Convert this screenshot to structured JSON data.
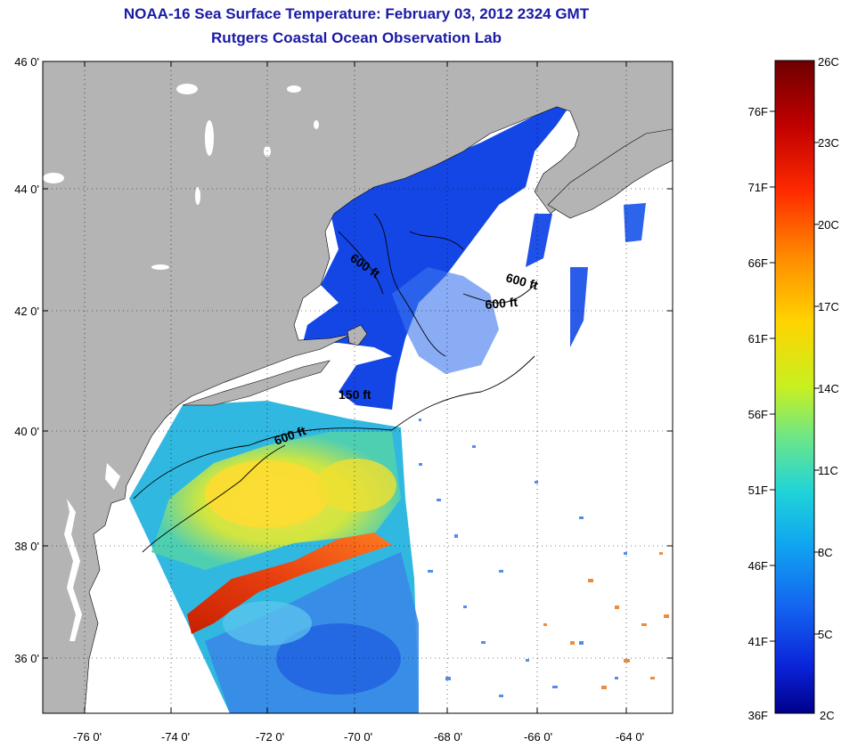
{
  "title": {
    "line1": "NOAA-16 Sea Surface Temperature:  February 03, 2012 2324 GMT",
    "line2": "Rutgers Coastal Ocean Observation Lab"
  },
  "map": {
    "lat_labels": [
      "46 0'",
      "44 0'",
      "42 0'",
      "40 0'",
      "38 0'",
      "36 0'"
    ],
    "lon_labels": [
      "-76 0'",
      "-74 0'",
      "-72 0'",
      "-70 0'",
      "-68 0'",
      "-66 0'",
      "-64 0'"
    ],
    "contour_labels": [
      "600 ft",
      "600 ft",
      "600 ft",
      "150 ft",
      "600 ft"
    ],
    "colors": {
      "land": "#b4b4b4",
      "no_data": "#ffffff",
      "frame": "#000000"
    }
  },
  "colorbar": {
    "fahrenheit_labels": [
      "76F",
      "71F",
      "66F",
      "61F",
      "56F",
      "51F",
      "46F",
      "41F",
      "36F"
    ],
    "celsius_labels": [
      "26C",
      "23C",
      "20C",
      "17C",
      "14C",
      "11C",
      "8C",
      "5C",
      "2C"
    ],
    "colors": [
      "#7a0000",
      "#c80000",
      "#ff3000",
      "#ff8c00",
      "#ffd200",
      "#d8f000",
      "#7ce878",
      "#22d8d0",
      "#10a8f0",
      "#1060f0",
      "#0820d8",
      "#00008a"
    ]
  }
}
